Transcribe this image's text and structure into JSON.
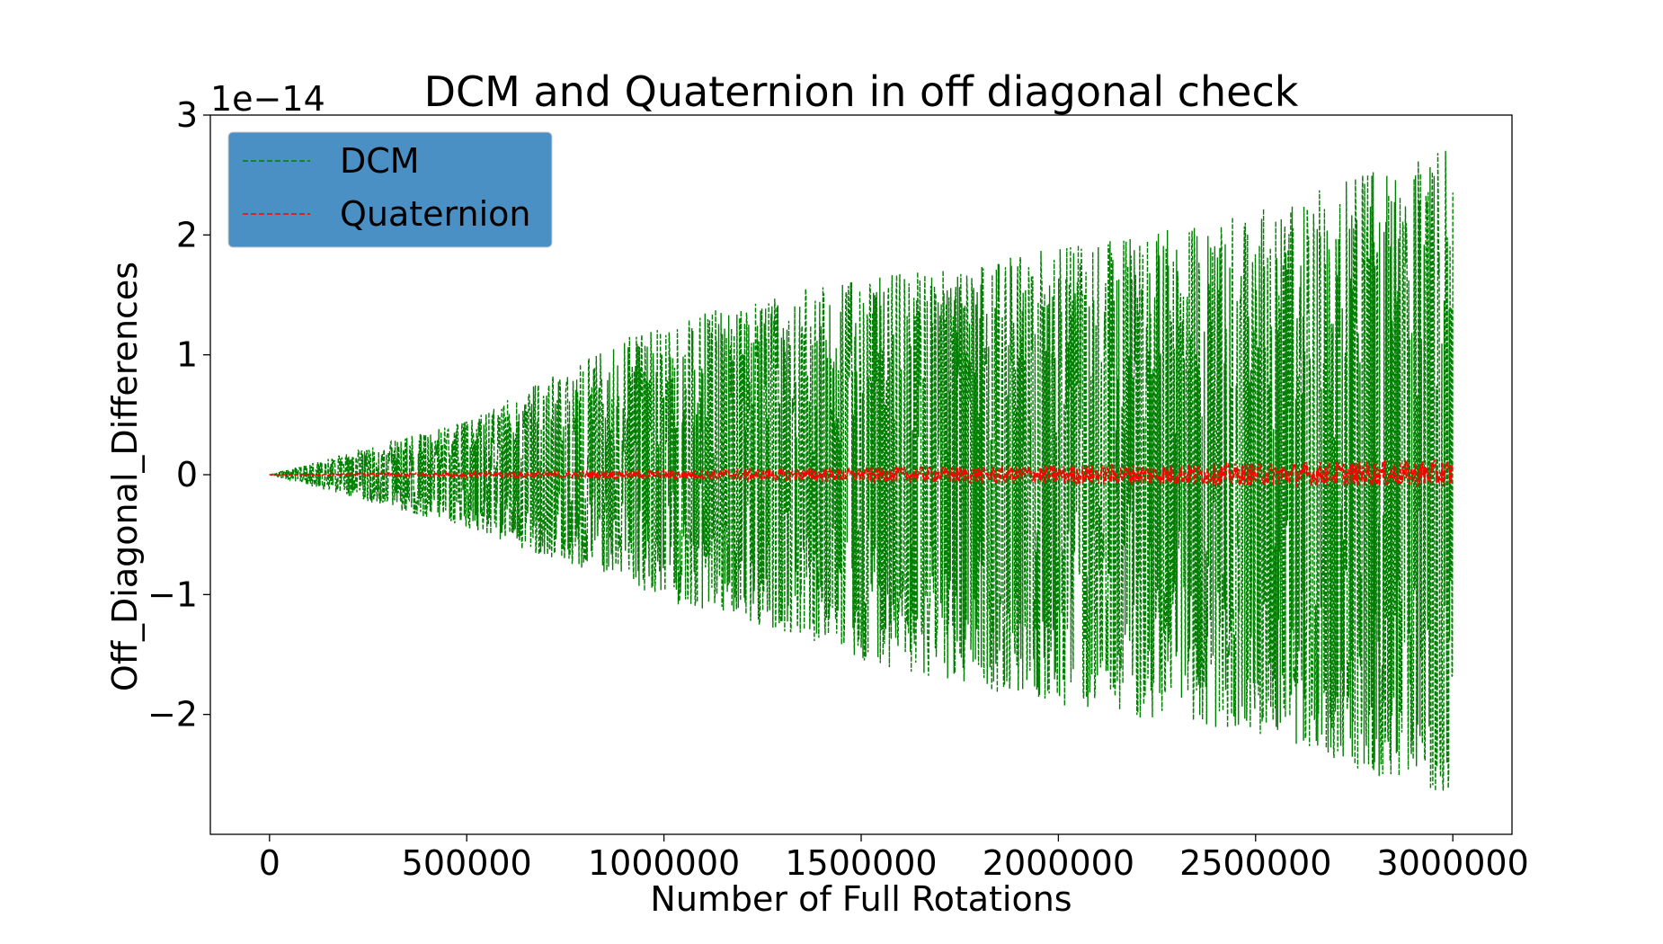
{
  "chart_data": {
    "type": "line",
    "title": "DCM and Quaternion in off diagonal check",
    "xlabel": "Number of Full Rotations",
    "ylabel": "Off_Diagonal_Differences",
    "y_offset_label": "1e−14",
    "xlim": [
      -150000,
      3150000
    ],
    "ylim": [
      -3.0,
      3.0
    ],
    "y_scale_factor": 1e-14,
    "xticks": [
      0,
      500000,
      1000000,
      1500000,
      2000000,
      2500000,
      3000000
    ],
    "xtick_labels": [
      "0",
      "500000",
      "1000000",
      "1500000",
      "2000000",
      "2500000",
      "3000000"
    ],
    "yticks": [
      -2,
      -1,
      0,
      1,
      2,
      3
    ],
    "ytick_labels": [
      "−2",
      "−1",
      "0",
      "1",
      "2",
      "3"
    ],
    "grid": false,
    "legend_position": "upper-left",
    "series": [
      {
        "name": "DCM",
        "color": "#008000",
        "style": "dashed",
        "envelope": {
          "x": [
            0,
            500000,
            1000000,
            1500000,
            2000000,
            2500000,
            3000000
          ],
          "upper": [
            0.0,
            0.45,
            1.3,
            1.65,
            1.9,
            2.2,
            2.75
          ],
          "lower": [
            0.0,
            -0.45,
            -1.05,
            -1.55,
            -1.95,
            -2.15,
            -2.75
          ]
        }
      },
      {
        "name": "Quaternion",
        "color": "#ff0000",
        "style": "dashed",
        "envelope": {
          "x": [
            0,
            500000,
            1000000,
            1500000,
            2000000,
            2500000,
            3000000
          ],
          "upper": [
            0.0,
            0.02,
            0.04,
            0.06,
            0.08,
            0.1,
            0.13
          ],
          "lower": [
            0.0,
            -0.02,
            -0.04,
            -0.06,
            -0.08,
            -0.09,
            -0.1
          ]
        }
      }
    ]
  }
}
